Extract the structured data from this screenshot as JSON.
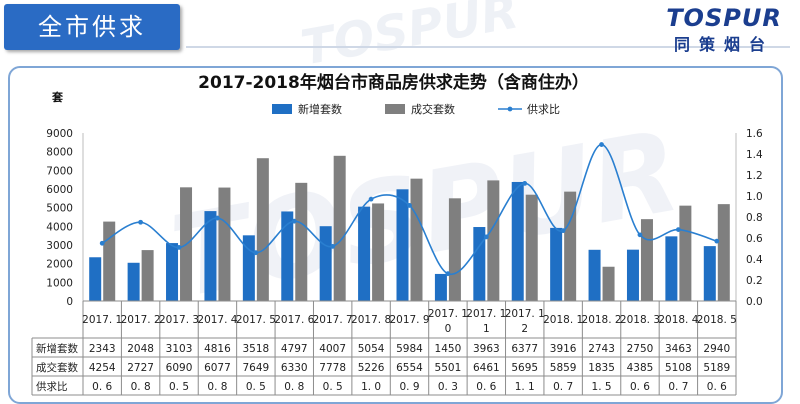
{
  "header": {
    "tab_title": "全市供求"
  },
  "logo": {
    "wordmark": "TOSPUR",
    "cn_name": "同策烟台"
  },
  "colors": {
    "accent": "#2a6bc4",
    "new_supply": "#1f6fc4",
    "transactions": "#7f7f7f",
    "ratio_line": "#2a7fd0"
  },
  "chart_data": {
    "type": "bar",
    "title": "2017-2018年烟台市商品房供求走势（含商住办）",
    "ylabel": "套",
    "ylim": [
      0,
      9000
    ],
    "y2lim": [
      0,
      1.6
    ],
    "yticks": [
      0,
      1000,
      2000,
      3000,
      4000,
      5000,
      6000,
      7000,
      8000,
      9000
    ],
    "y2ticks": [
      "0.0",
      "0.2",
      "0.4",
      "0.6",
      "0.8",
      "1.0",
      "1.2",
      "1.4",
      "1.6"
    ],
    "categories": [
      "2017. 1",
      "2017. 2",
      "2017. 3",
      "2017. 4",
      "2017. 5",
      "2017. 6",
      "2017. 7",
      "2017. 8",
      "2017. 9",
      "2017. 10",
      "2017. 11",
      "2017. 12",
      "2018. 1",
      "2018. 2",
      "2018. 3",
      "2018. 4",
      "2018. 5"
    ],
    "category_lines": [
      [
        "2017. 1"
      ],
      [
        "2017. 2"
      ],
      [
        "2017. 3"
      ],
      [
        "2017. 4"
      ],
      [
        "2017. 5"
      ],
      [
        "2017. 6"
      ],
      [
        "2017. 7"
      ],
      [
        "2017. 8"
      ],
      [
        "2017. 9"
      ],
      [
        "2017. 1",
        "0"
      ],
      [
        "2017. 1",
        "1"
      ],
      [
        "2017. 1",
        "2"
      ],
      [
        "2018. 1"
      ],
      [
        "2018. 2"
      ],
      [
        "2018. 3"
      ],
      [
        "2018. 4"
      ],
      [
        "2018. 5"
      ]
    ],
    "series": [
      {
        "name": "新增套数",
        "type": "bar",
        "axis": "left",
        "values": [
          2343,
          2048,
          3103,
          4816,
          3518,
          4797,
          4007,
          5054,
          5984,
          1450,
          3963,
          6377,
          3916,
          2743,
          2750,
          3463,
          2940
        ]
      },
      {
        "name": "成交套数",
        "type": "bar",
        "axis": "left",
        "values": [
          4254,
          2727,
          6090,
          6077,
          7649,
          6330,
          7778,
          5226,
          6554,
          5501,
          6461,
          5695,
          5859,
          1835,
          4385,
          5108,
          5189
        ]
      },
      {
        "name": "供求比",
        "type": "line",
        "axis": "right",
        "values": [
          0.55,
          0.75,
          0.51,
          0.79,
          0.46,
          0.76,
          0.52,
          0.97,
          0.91,
          0.26,
          0.61,
          1.12,
          0.67,
          1.49,
          0.63,
          0.68,
          0.57
        ]
      }
    ],
    "table": {
      "row_labels": [
        "新增套数",
        "成交套数",
        "供求比"
      ],
      "rows": [
        [
          "2343",
          "2048",
          "3103",
          "4816",
          "3518",
          "4797",
          "4007",
          "5054",
          "5984",
          "1450",
          "3963",
          "6377",
          "3916",
          "2743",
          "2750",
          "3463",
          "2940"
        ],
        [
          "4254",
          "2727",
          "6090",
          "6077",
          "7649",
          "6330",
          "7778",
          "5226",
          "6554",
          "5501",
          "6461",
          "5695",
          "5859",
          "1835",
          "4385",
          "5108",
          "5189"
        ],
        [
          "0. 6",
          "0. 8",
          "0. 5",
          "0. 8",
          "0. 5",
          "0. 8",
          "0. 5",
          "1. 0",
          "0. 9",
          "0. 3",
          "0. 6",
          "1. 1",
          "0. 7",
          "1. 5",
          "0. 6",
          "0. 7",
          "0. 6"
        ]
      ]
    },
    "legend_position": "top-center",
    "grid": false
  }
}
